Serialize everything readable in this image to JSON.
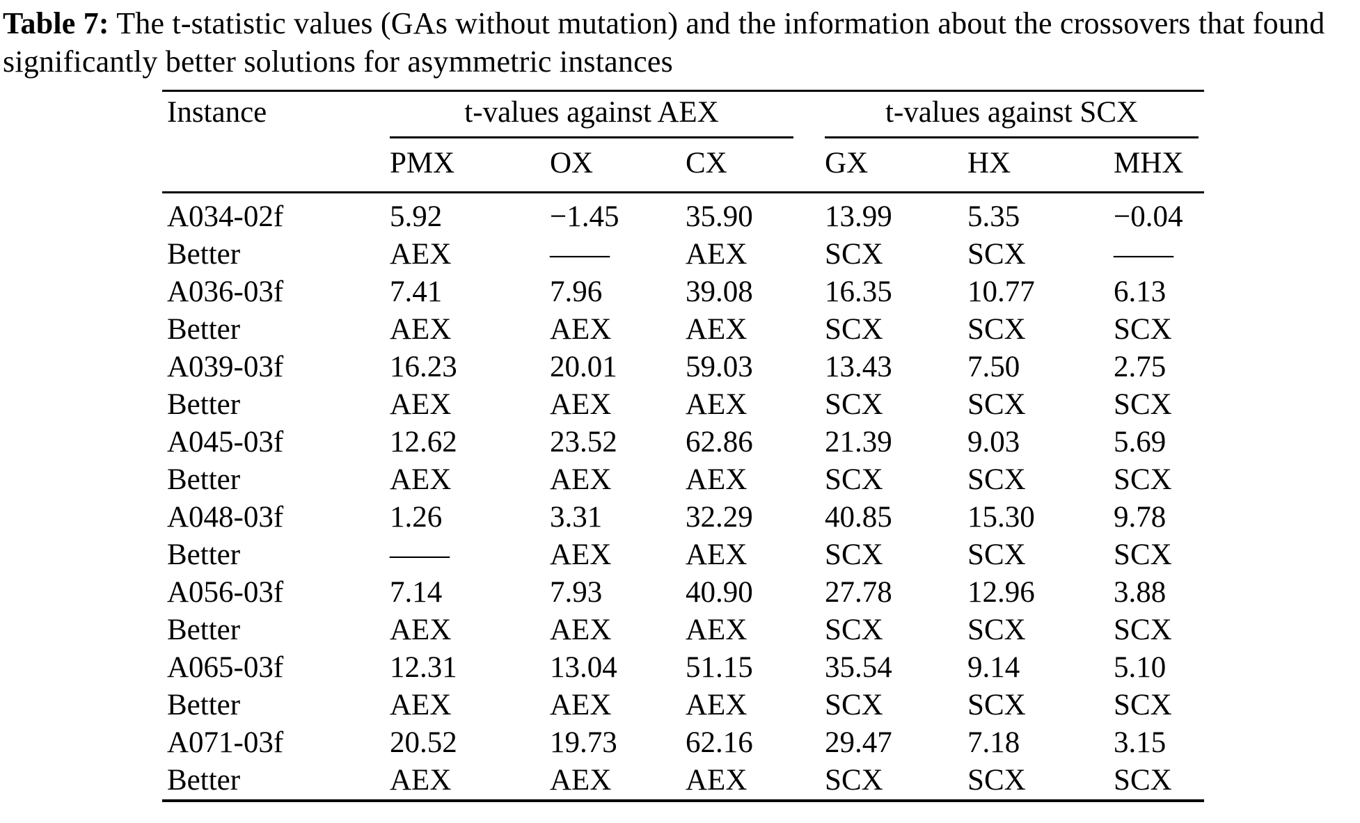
{
  "caption": {
    "label": "Table 7:",
    "text": " The t-statistic values (GAs without mutation) and the information about the crossovers that found significantly better solutions for asymmetric instances"
  },
  "table": {
    "instance_header": "Instance",
    "groups": [
      {
        "label": "t-values against AEX",
        "columns": [
          "PMX",
          "OX",
          "CX"
        ]
      },
      {
        "label": "t-values against SCX",
        "columns": [
          "GX",
          "HX",
          "MHX"
        ]
      }
    ],
    "rows": [
      {
        "type": "instance",
        "cells": [
          "A034-02f",
          "5.92",
          "−1.45",
          "35.90",
          "13.99",
          "5.35",
          "−0.04"
        ]
      },
      {
        "type": "better",
        "cells": [
          "Better",
          "AEX",
          "——",
          "AEX",
          "SCX",
          "SCX",
          "——"
        ]
      },
      {
        "type": "instance",
        "cells": [
          "A036-03f",
          "7.41",
          "7.96",
          "39.08",
          "16.35",
          "10.77",
          "6.13"
        ]
      },
      {
        "type": "better",
        "cells": [
          "Better",
          "AEX",
          "AEX",
          "AEX",
          "SCX",
          "SCX",
          "SCX"
        ]
      },
      {
        "type": "instance",
        "cells": [
          "A039-03f",
          "16.23",
          "20.01",
          "59.03",
          "13.43",
          "7.50",
          "2.75"
        ]
      },
      {
        "type": "better",
        "cells": [
          "Better",
          "AEX",
          "AEX",
          "AEX",
          "SCX",
          "SCX",
          "SCX"
        ]
      },
      {
        "type": "instance",
        "cells": [
          "A045-03f",
          "12.62",
          "23.52",
          "62.86",
          "21.39",
          "9.03",
          "5.69"
        ]
      },
      {
        "type": "better",
        "cells": [
          "Better",
          "AEX",
          "AEX",
          "AEX",
          "SCX",
          "SCX",
          "SCX"
        ]
      },
      {
        "type": "instance",
        "cells": [
          "A048-03f",
          "1.26",
          "3.31",
          "32.29",
          "40.85",
          "15.30",
          "9.78"
        ]
      },
      {
        "type": "better",
        "cells": [
          "Better",
          "——",
          "AEX",
          "AEX",
          "SCX",
          "SCX",
          "SCX"
        ]
      },
      {
        "type": "instance",
        "cells": [
          "A056-03f",
          "7.14",
          "7.93",
          "40.90",
          "27.78",
          "12.96",
          "3.88"
        ]
      },
      {
        "type": "better",
        "cells": [
          "Better",
          "AEX",
          "AEX",
          "AEX",
          "SCX",
          "SCX",
          "SCX"
        ]
      },
      {
        "type": "instance",
        "cells": [
          "A065-03f",
          "12.31",
          "13.04",
          "51.15",
          "35.54",
          "9.14",
          "5.10"
        ]
      },
      {
        "type": "better",
        "cells": [
          "Better",
          "AEX",
          "AEX",
          "AEX",
          "SCX",
          "SCX",
          "SCX"
        ]
      },
      {
        "type": "instance",
        "cells": [
          "A071-03f",
          "20.52",
          "19.73",
          "62.16",
          "29.47",
          "7.18",
          "3.15"
        ]
      },
      {
        "type": "better",
        "cells": [
          "Better",
          "AEX",
          "AEX",
          "AEX",
          "SCX",
          "SCX",
          "SCX"
        ]
      }
    ]
  }
}
